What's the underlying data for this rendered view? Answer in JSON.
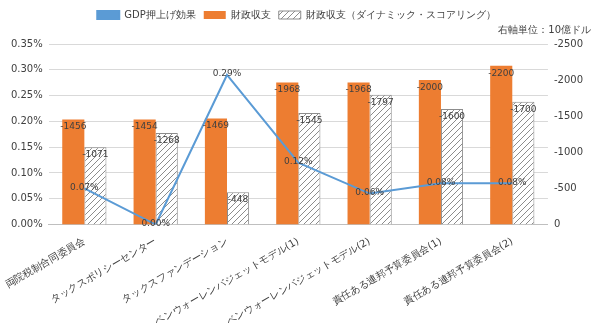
{
  "chart_data": {
    "type": "bar",
    "annotation": "右軸単位：10億ドル",
    "categories": [
      "両院税制合同委員会",
      "タックスポリシーセンター",
      "タックスファンデーション",
      "ペンウォーレンバジェットモデル(1)",
      "ペンウォーレンバジェットモデル(2)",
      "責任ある連邦予算委員会(1)",
      "責任ある連邦予算委員会(2)"
    ],
    "series": [
      {
        "name": "財政収支",
        "type": "bar",
        "axis": "y2",
        "color": "#ed7d31",
        "values": [
          -1456,
          -1454,
          -1469,
          -1968,
          -1968,
          -2000,
          -2200
        ]
      },
      {
        "name": "財政収支（ダイナミック・スコアリング）",
        "type": "bar",
        "axis": "y2",
        "color": "#8c8c8c",
        "values": [
          -1071,
          -1268,
          -448,
          -1545,
          -1797,
          -1600,
          -1700
        ]
      },
      {
        "name": "GDP押上げ効果",
        "type": "line",
        "color": "#5b9bd5",
        "marker": "none",
        "line_style": "solid",
        "values": [
          0.07,
          0.0,
          0.29,
          0.12,
          0.06,
          0.08,
          0.08
        ],
        "value_labels": [
          "0.07%",
          "0.00%",
          "0.29%",
          "0.12%",
          "0.06%",
          "0.08%",
          "0.08%"
        ]
      }
    ],
    "ylim": [
      0,
      0.35
    ],
    "yticks": [
      {
        "value": 0,
        "label": "0.00%"
      },
      {
        "value": 0.05,
        "label": "0.05%"
      },
      {
        "value": 0.1,
        "label": "0.10%"
      },
      {
        "value": 0.15,
        "label": "0.15%"
      },
      {
        "value": 0.2,
        "label": "0.20%"
      },
      {
        "value": 0.25,
        "label": "0.25%"
      },
      {
        "value": 0.3,
        "label": "0.30%"
      },
      {
        "value": 0.35,
        "label": "0.35%"
      }
    ],
    "y2lim": [
      0,
      -2500
    ],
    "y2ticks": [
      0,
      -500,
      -1000,
      -1500,
      -2000,
      -2500
    ],
    "grid": true,
    "legend": "top",
    "data_labels": true
  }
}
